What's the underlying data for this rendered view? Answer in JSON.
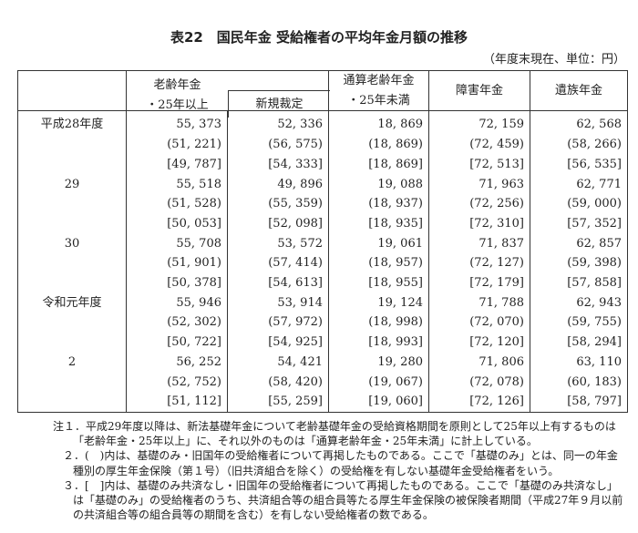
{
  "title": "表22　国民年金 受給権者の平均年金月額の推移",
  "unit": "（年度末現在、単位：円）",
  "headers": {
    "old_age": "老齢年金",
    "old_age_sub": "・25年以上",
    "new_award": "新規裁定",
    "tsusan": "通算老齢年金",
    "tsusan_sub": "・25年未満",
    "disability": "障害年金",
    "survivor": "遺族年金"
  },
  "rows": [
    {
      "year": "平成28年度",
      "v": [
        "55, 373",
        "52, 336",
        "18, 869",
        "72, 159",
        "62, 568"
      ]
    },
    {
      "year": "",
      "v": [
        "(51, 221)",
        "(56, 575)",
        "(18, 869)",
        "(72, 459)",
        "(58, 266)"
      ]
    },
    {
      "year": "",
      "v": [
        "[49, 787]",
        "[54, 333]",
        "[18, 869]",
        "[72, 513]",
        "[56, 535]"
      ]
    },
    {
      "year": "29",
      "v": [
        "55, 518",
        "49, 896",
        "19, 088",
        "71, 963",
        "62, 771"
      ]
    },
    {
      "year": "",
      "v": [
        "(51, 528)",
        "(55, 359)",
        "(18, 937)",
        "(72, 256)",
        "(59, 000)"
      ]
    },
    {
      "year": "",
      "v": [
        "[50, 053]",
        "[52, 098]",
        "[18, 935]",
        "[72, 310]",
        "[57, 352]"
      ]
    },
    {
      "year": "30",
      "v": [
        "55, 708",
        "53, 572",
        "19, 061",
        "71, 837",
        "62, 857"
      ]
    },
    {
      "year": "",
      "v": [
        "(51, 901)",
        "(57, 414)",
        "(18, 957)",
        "(72, 127)",
        "(59, 398)"
      ]
    },
    {
      "year": "",
      "v": [
        "[50, 378]",
        "[54, 613]",
        "[18, 955]",
        "[72, 179]",
        "[57, 858]"
      ]
    },
    {
      "year": "令和元年度",
      "v": [
        "55, 946",
        "53, 914",
        "19, 124",
        "71, 788",
        "62, 943"
      ]
    },
    {
      "year": "",
      "v": [
        "(52, 302)",
        "(57, 972)",
        "(18, 998)",
        "(72, 070)",
        "(59, 755)"
      ]
    },
    {
      "year": "",
      "v": [
        "[50, 722]",
        "[54, 925]",
        "[18, 993]",
        "[72, 120]",
        "[58, 294]"
      ]
    },
    {
      "year": "2",
      "v": [
        "56, 252",
        "54, 421",
        "19, 280",
        "71, 806",
        "63, 110"
      ]
    },
    {
      "year": "",
      "v": [
        "(52, 752)",
        "(58, 420)",
        "(19, 067)",
        "(72, 078)",
        "(60, 183)"
      ]
    },
    {
      "year": "",
      "v": [
        "[51, 112]",
        "[55, 259]",
        "[19, 060]",
        "[72, 126]",
        "[58, 797]"
      ]
    }
  ],
  "notes": [
    "注１．平成29年度以降は、新法基礎年金について老齢基礎年金の受給資格期間を原則として25年以上有するものは",
    "「老齢年金・25年以上」に、それ以外のものは「通算老齢年金・25年未満」に計上している。",
    "２．(　)内は、基礎のみ・旧国年の受給権者について再掲したものである。ここで「基礎のみ」とは、同一の年金",
    "種別の厚生年金保険（第１号）（旧共済組合を除く）の受給権を有しない基礎年金受給権者をいう。",
    "３．[　]内は、基礎のみ共済なし・旧国年の受給権者について再掲したものである。ここで「基礎のみ共済なし」",
    "は「基礎のみ」の受給権者のうち、共済組合等の組合員等たる厚生年金保険の被保険者期間（平成27年９月以前",
    "の共済組合等の組合員等の期間を含む）を有しない受給権者の数である。"
  ]
}
